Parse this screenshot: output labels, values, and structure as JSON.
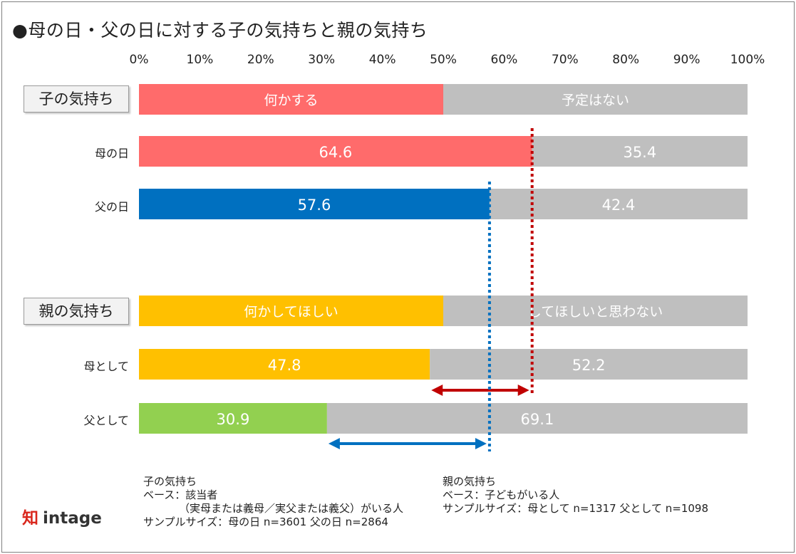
{
  "title": "●母の日・父の日に対する子の気持ちと親の気持ち",
  "chart_data": {
    "type": "bar",
    "orientation": "horizontal-stacked-100",
    "axis": {
      "min": 0,
      "max": 100,
      "ticks": [
        "0%",
        "10%",
        "20%",
        "30%",
        "40%",
        "50%",
        "60%",
        "70%",
        "80%",
        "90%",
        "100%"
      ]
    },
    "sections": [
      {
        "label": "子の気持ち",
        "legend": [
          "何かする",
          "予定はない"
        ],
        "rows": [
          {
            "label": "母の日",
            "value": 64.6,
            "rest": 35.4,
            "value_label": "64.6",
            "rest_label": "35.4",
            "color": "#ff6b6b"
          },
          {
            "label": "父の日",
            "value": 57.6,
            "rest": 42.4,
            "value_label": "57.6",
            "rest_label": "42.4",
            "color": "#0070c0"
          }
        ],
        "legend_color": "#ff6b6b"
      },
      {
        "label": "親の気持ち",
        "legend": [
          "何かしてほしい",
          "してほしいと思わない"
        ],
        "rows": [
          {
            "label": "母として",
            "value": 47.8,
            "rest": 52.2,
            "value_label": "47.8",
            "rest_label": "52.2",
            "color": "#ffc000"
          },
          {
            "label": "父として",
            "value": 30.9,
            "rest": 69.1,
            "value_label": "30.9",
            "rest_label": "69.1",
            "color": "#92d050"
          }
        ],
        "legend_color": "#ffc000"
      }
    ],
    "rest_color": "#bfbfbf",
    "reference_lines": [
      {
        "value": 64.6,
        "color": "#c00000",
        "style": "dotted",
        "compare_to": 47.8
      },
      {
        "value": 57.6,
        "color": "#0070c0",
        "style": "dotted",
        "compare_to": 30.9
      }
    ]
  },
  "notes": {
    "child": [
      "子の気持ち",
      "ベース：該当者",
      "（実母または義母／実父または義父）がいる人",
      "サンプルサイズ：母の日 n=3601 父の日 n=2864"
    ],
    "parent": [
      "親の気持ち",
      "ベース：子どもがいる人",
      "サンプルサイズ：母として n=1317 父として n=1098"
    ]
  },
  "logo": {
    "brand": "intage",
    "mark": "知"
  }
}
